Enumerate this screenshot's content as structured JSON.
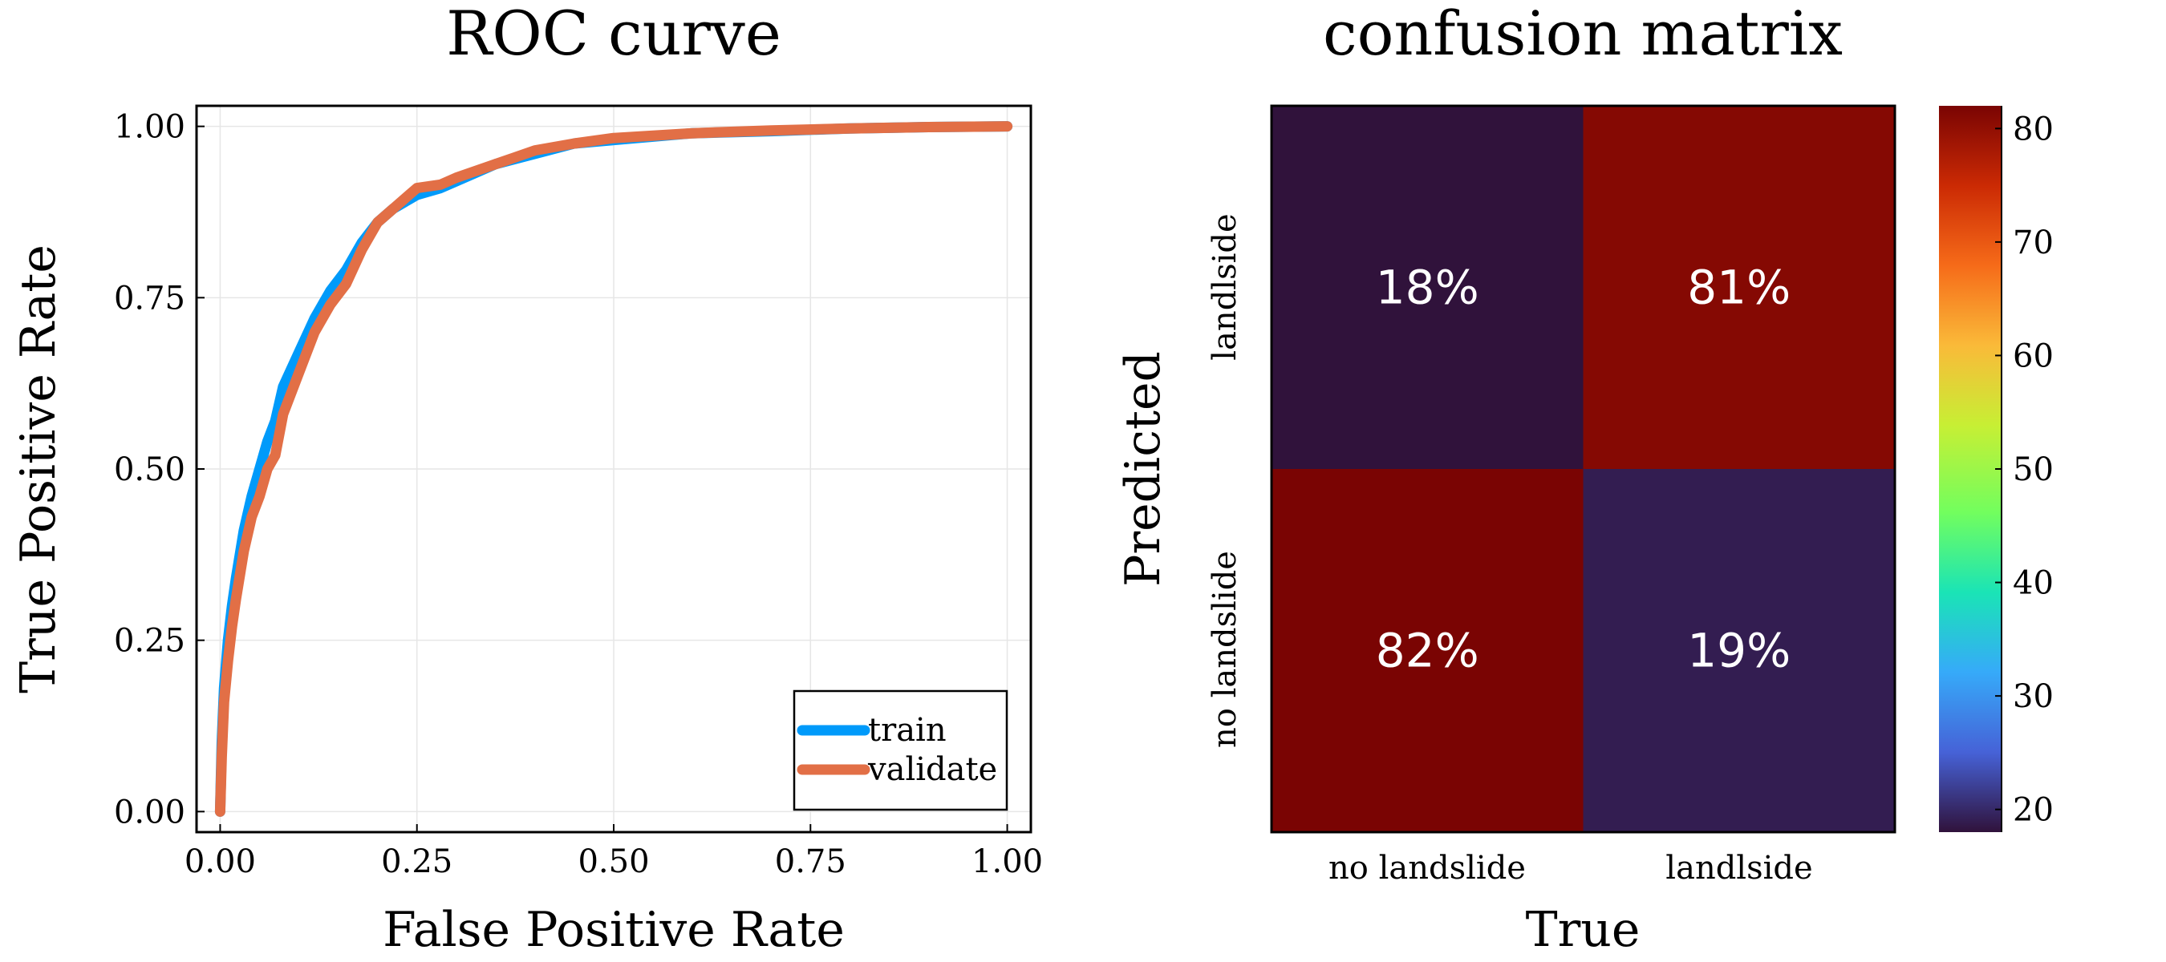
{
  "chart_data": [
    {
      "type": "line",
      "title": "ROC curve",
      "xlabel": "False Positive Rate",
      "ylabel": "True Positive Rate",
      "xlim": [
        -0.03,
        1.03
      ],
      "ylim": [
        -0.03,
        1.03
      ],
      "x_ticks": [
        "0.00",
        "0.25",
        "0.50",
        "0.75",
        "1.00"
      ],
      "y_ticks": [
        "0.00",
        "0.25",
        "0.50",
        "0.75",
        "1.00"
      ],
      "x_tick_values": [
        0,
        0.25,
        0.5,
        0.75,
        1.0
      ],
      "y_tick_values": [
        0,
        0.25,
        0.5,
        0.75,
        1.0
      ],
      "grid": true,
      "legend": {
        "placement": "bottom-right"
      },
      "series": [
        {
          "name": "train",
          "color": "#009AFA",
          "x": [
            0.0,
            0.002,
            0.005,
            0.01,
            0.015,
            0.02,
            0.03,
            0.04,
            0.05,
            0.06,
            0.07,
            0.08,
            0.1,
            0.12,
            0.14,
            0.16,
            0.18,
            0.2,
            0.22,
            0.25,
            0.28,
            0.3,
            0.35,
            0.4,
            0.45,
            0.5,
            0.6,
            0.7,
            0.8,
            0.9,
            1.0
          ],
          "y": [
            0.0,
            0.1,
            0.18,
            0.25,
            0.3,
            0.34,
            0.41,
            0.46,
            0.5,
            0.54,
            0.57,
            0.62,
            0.67,
            0.72,
            0.76,
            0.79,
            0.83,
            0.86,
            0.88,
            0.9,
            0.91,
            0.92,
            0.945,
            0.96,
            0.975,
            0.98,
            0.99,
            0.993,
            0.997,
            0.999,
            1.0
          ]
        },
        {
          "name": "validate",
          "color": "#E26F46",
          "x": [
            0.0,
            0.002,
            0.005,
            0.01,
            0.015,
            0.02,
            0.03,
            0.04,
            0.05,
            0.06,
            0.07,
            0.08,
            0.1,
            0.12,
            0.14,
            0.16,
            0.18,
            0.2,
            0.22,
            0.25,
            0.28,
            0.3,
            0.35,
            0.4,
            0.45,
            0.5,
            0.6,
            0.7,
            0.8,
            0.9,
            1.0
          ],
          "y": [
            0.0,
            0.08,
            0.16,
            0.22,
            0.27,
            0.31,
            0.38,
            0.43,
            0.46,
            0.5,
            0.52,
            0.58,
            0.64,
            0.7,
            0.74,
            0.77,
            0.82,
            0.86,
            0.88,
            0.91,
            0.915,
            0.925,
            0.945,
            0.965,
            0.975,
            0.983,
            0.99,
            0.994,
            0.997,
            0.999,
            1.0
          ]
        }
      ]
    },
    {
      "type": "heatmap",
      "title": "confusion matrix",
      "xlabel": "True",
      "ylabel": "Predicted",
      "x_categories": [
        "no landslide",
        "landlside"
      ],
      "y_categories": [
        "no landslide",
        "landlside"
      ],
      "cells": [
        {
          "x": "no landslide",
          "y": "landlside",
          "value": 18,
          "label": "18%"
        },
        {
          "x": "landlside",
          "y": "landlside",
          "value": 81,
          "label": "81%"
        },
        {
          "x": "no landslide",
          "y": "no landslide",
          "value": 82,
          "label": "82%"
        },
        {
          "x": "landlside",
          "y": "no landslide",
          "value": 19,
          "label": "19%"
        }
      ],
      "colorbar": {
        "min": 18,
        "max": 82,
        "ticks": [
          "20",
          "30",
          "40",
          "50",
          "60",
          "70",
          "80"
        ],
        "tick_values": [
          20,
          30,
          40,
          50,
          60,
          70,
          80
        ],
        "colormap": [
          "#30123B",
          "#4662D7",
          "#36AAF9",
          "#1AE4B6",
          "#72FE5E",
          "#C7EF34",
          "#FABA39",
          "#F66B19",
          "#CB2A04",
          "#7A0403"
        ]
      }
    }
  ]
}
